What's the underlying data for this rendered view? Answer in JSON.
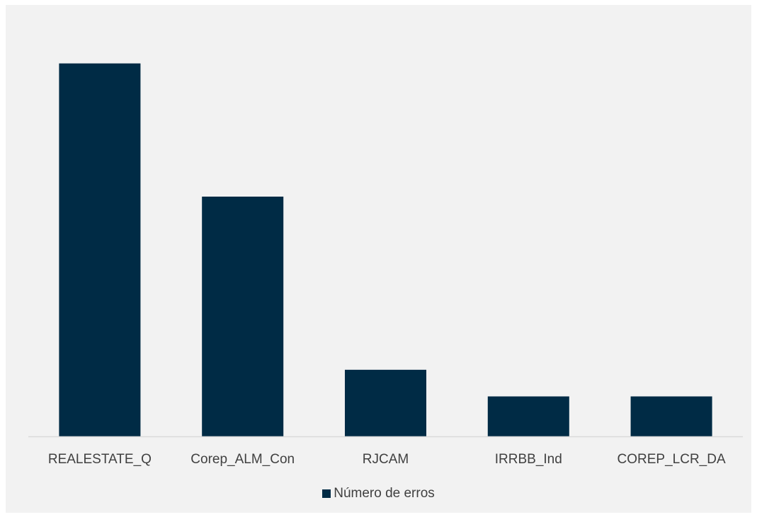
{
  "chart_data": {
    "type": "bar",
    "categories": [
      "REALESTATE_Q",
      "Corep_ALM_Con",
      "RJCAM",
      "IRRBB_Ind",
      "COREP_LCR_DA"
    ],
    "series": [
      {
        "name": "Número de erros",
        "values": [
          14,
          9,
          2.5,
          1.5,
          1.5
        ],
        "color": "#002b45"
      }
    ],
    "ylim": [
      0,
      15
    ],
    "grid": false,
    "legend_position": "bottom",
    "axis_color": "#d9d9d9",
    "text_color": "#404040"
  }
}
